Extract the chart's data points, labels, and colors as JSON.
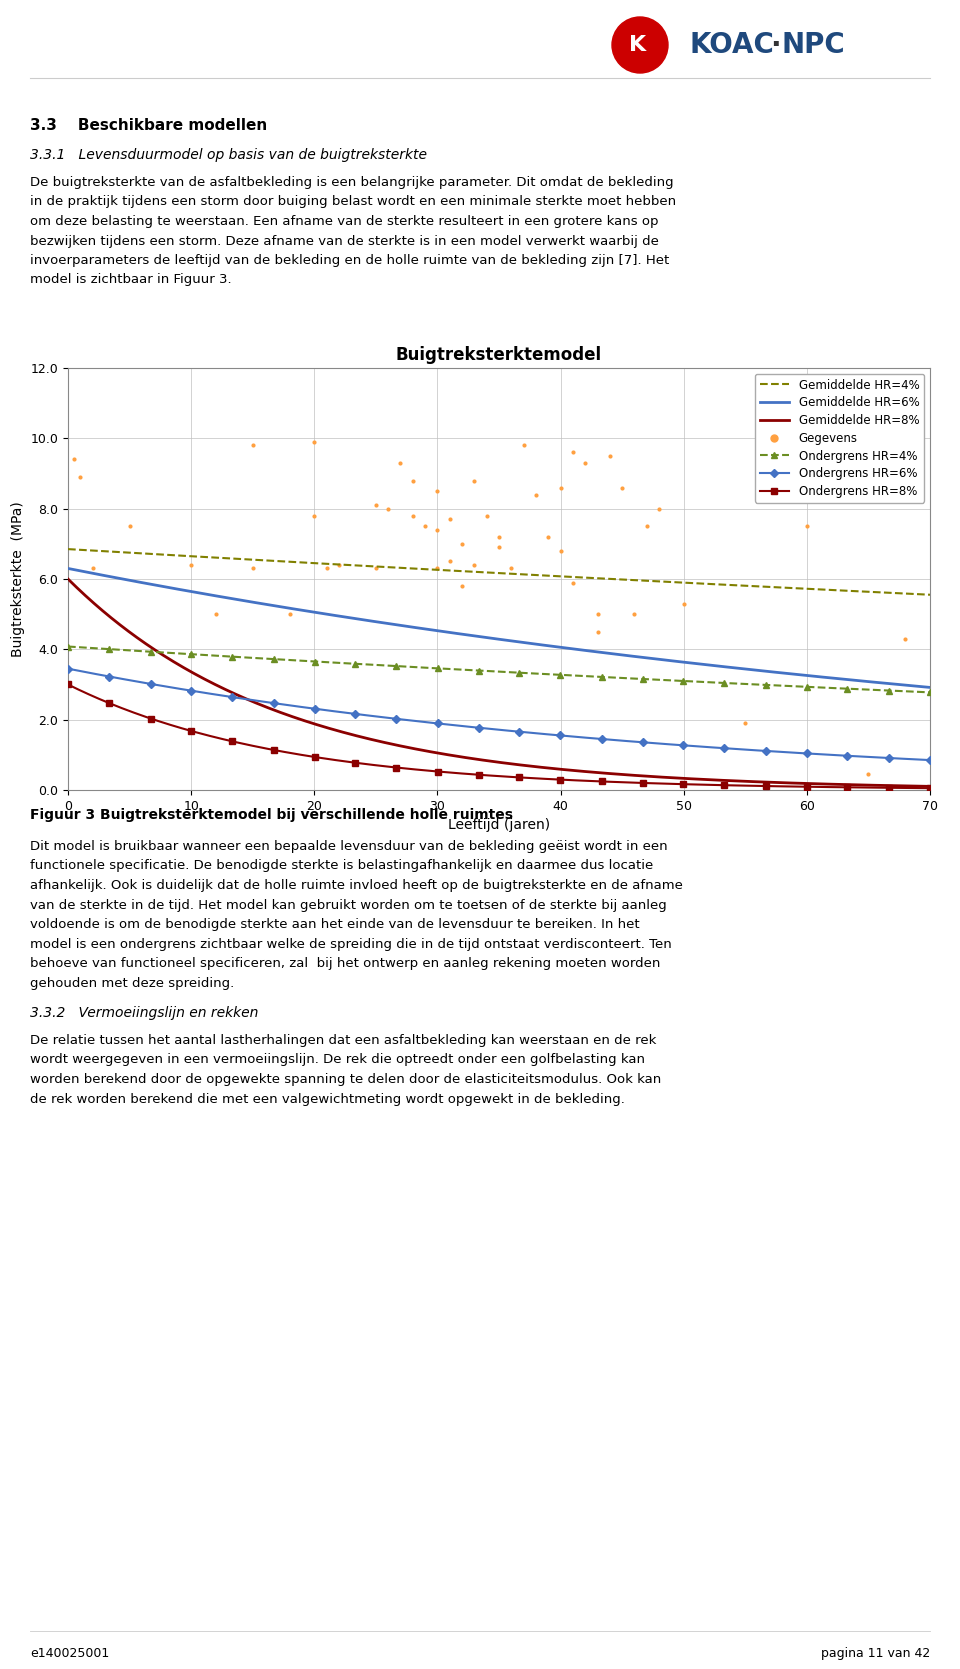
{
  "title": "Buigtreksterktemodel",
  "xlabel": "Leeftijd (jaren)",
  "ylabel": "Buigtreksterkte  (MPa)",
  "xlim": [
    0,
    70
  ],
  "ylim": [
    0.0,
    12.0
  ],
  "yticks": [
    0.0,
    2.0,
    4.0,
    6.0,
    8.0,
    10.0,
    12.0
  ],
  "xticks": [
    0,
    10,
    20,
    30,
    40,
    50,
    60,
    70
  ],
  "heading33": "3.3    Beschikbare modellen",
  "heading331": "3.3.1   Levensduurmodel op basis van de buigtreksterkte",
  "para1_lines": [
    "De buigtreksterkte van de asfaltbekleding is een belangrijke parameter. Dit omdat de bekleding",
    "in de praktijk tijdens een storm door buiging belast wordt en een minimale sterkte moet hebben",
    "om deze belasting te weerstaan. Een afname van de sterkte resulteert in een grotere kans op",
    "bezwijken tijdens een storm. Deze afname van de sterkte is in een model verwerkt waarbij de",
    "invoerparameters de leeftijd van de bekleding en de holle ruimte van de bekleding zijn [7]. Het",
    "model is zichtbaar in Figuur 3."
  ],
  "fig_caption": "Figuur 3 Buigtreksterktemodel bij verschillende holle ruimtes",
  "para2_lines": [
    "Dit model is bruikbaar wanneer een bepaalde levensduur van de bekleding geëist wordt in een",
    "functionele specificatie. De benodigde sterkte is belastingafhankelijk en daarmee dus locatie",
    "afhankelijk. Ook is duidelijk dat de holle ruimte invloed heeft op de buigtreksterkte en de afname",
    "van de sterkte in de tijd. Het model kan gebruikt worden om te toetsen of de sterkte bij aanleg",
    "voldoende is om de benodigde sterkte aan het einde van de levensduur te bereiken. In het",
    "model is een ondergrens zichtbaar welke de spreiding die in de tijd ontstaat verdisconteert. Ten",
    "behoeve van functioneel specificeren, zal  bij het ontwerp en aanleg rekening moeten worden",
    "gehouden met deze spreiding."
  ],
  "heading332": "3.3.2   Vermoeiingslijn en rekken",
  "para3_lines": [
    "De relatie tussen het aantal lastherhalingen dat een asfaltbekleding kan weerstaan en de rek",
    "wordt weergegeven in een vermoeiingslijn. De rek die optreedt onder een golfbelasting kan",
    "worden berekend door de opgewekte spanning te delen door de elasticiteitsmodulus. Ook kan",
    "de rek worden berekend die met een valgewichtmeting wordt opgewekt in de bekleding."
  ],
  "footer_left": "e140025001",
  "footer_right": "pagina 11 van 42",
  "gem4_color": "#808000",
  "gem6_color": "#4472c4",
  "gem8_color": "#8b0000",
  "data_color": "#ffa040",
  "onder4_color": "#6b8e23",
  "onder6_color": "#4472c4",
  "onder8_color": "#8b0000",
  "scatter_x": [
    0.5,
    1,
    2,
    5,
    10,
    12,
    15,
    15,
    18,
    20,
    20,
    21,
    22,
    25,
    25,
    26,
    27,
    28,
    28,
    29,
    30,
    30,
    30,
    31,
    31,
    32,
    32,
    33,
    33,
    34,
    35,
    35,
    36,
    37,
    38,
    39,
    40,
    40,
    41,
    41,
    42,
    43,
    43,
    44,
    45,
    46,
    47,
    48,
    50,
    55,
    60,
    65,
    68
  ],
  "scatter_y": [
    9.4,
    8.9,
    6.3,
    7.5,
    6.4,
    5.0,
    9.8,
    6.3,
    5.0,
    9.9,
    7.8,
    6.3,
    6.4,
    8.1,
    6.3,
    8.0,
    9.3,
    8.8,
    7.8,
    7.5,
    8.5,
    7.4,
    6.3,
    7.7,
    6.5,
    7.0,
    5.8,
    8.8,
    6.4,
    7.8,
    6.9,
    7.2,
    6.3,
    9.8,
    8.4,
    7.2,
    8.6,
    6.8,
    9.6,
    5.9,
    9.3,
    5.0,
    4.5,
    9.5,
    8.6,
    5.0,
    7.5,
    8.0,
    5.3,
    1.9,
    7.5,
    0.45,
    4.3
  ]
}
